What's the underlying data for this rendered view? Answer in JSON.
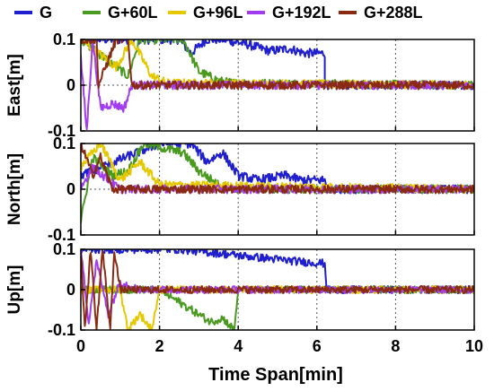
{
  "chart_data": {
    "type": "line",
    "xlabel": "Time Span[min]",
    "xlim": [
      0,
      10
    ],
    "xticks": [
      "0",
      "2",
      "4",
      "6",
      "8",
      "10"
    ],
    "legend": {
      "placement": "top",
      "entries": [
        {
          "name": "G",
          "color": "#1f1fcf"
        },
        {
          "name": "G+60L",
          "color": "#4a9a1f"
        },
        {
          "name": "G+96L",
          "color": "#e6c800"
        },
        {
          "name": "G+192L",
          "color": "#a23cf0"
        },
        {
          "name": "G+288L",
          "color": "#8b2a12"
        }
      ]
    },
    "panels": [
      {
        "ylabel": "East[m]",
        "ylim": [
          -0.1,
          0.1
        ],
        "yticks": [
          "0.1",
          "0",
          "-0.1"
        ],
        "grid": true,
        "series": [
          {
            "name": "G",
            "color": "#1f1fcf",
            "points": [
              [
                0.0,
                0.1
              ],
              [
                2.5,
                0.1
              ],
              [
                2.8,
                0.07
              ],
              [
                3.2,
                0.1
              ],
              [
                3.6,
                0.1
              ],
              [
                4.2,
                0.09
              ],
              [
                4.8,
                0.075
              ],
              [
                5.3,
                0.08
              ],
              [
                5.7,
                0.07
              ],
              [
                6.2,
                0.07
              ],
              [
                6.2,
                0.0
              ],
              [
                10.0,
                0.0
              ]
            ]
          },
          {
            "name": "G+60L",
            "color": "#4a9a1f",
            "points": [
              [
                0.0,
                0.1
              ],
              [
                1.2,
                0.02
              ],
              [
                1.5,
                0.1
              ],
              [
                2.6,
                0.1
              ],
              [
                3.0,
                0.03
              ],
              [
                3.5,
                0.01
              ],
              [
                3.9,
                0.005
              ],
              [
                10.0,
                0.0
              ]
            ]
          },
          {
            "name": "G+96L",
            "color": "#e6c800",
            "points": [
              [
                0.0,
                0.1
              ],
              [
                0.9,
                0.04
              ],
              [
                1.3,
                0.1
              ],
              [
                1.8,
                0.02
              ],
              [
                2.2,
                0.005
              ],
              [
                10.0,
                0.0
              ]
            ]
          },
          {
            "name": "G+192L",
            "color": "#a23cf0",
            "points": [
              [
                0.0,
                0.06
              ],
              [
                0.15,
                -0.1
              ],
              [
                0.3,
                0.1
              ],
              [
                0.5,
                -0.05
              ],
              [
                0.8,
                -0.04
              ],
              [
                1.1,
                -0.05
              ],
              [
                1.3,
                0.0
              ],
              [
                10.0,
                0.0
              ]
            ]
          },
          {
            "name": "G+288L",
            "color": "#8b2a12",
            "points": [
              [
                0.0,
                0.1
              ],
              [
                0.4,
                0.1
              ],
              [
                0.45,
                0.0
              ],
              [
                0.9,
                0.1
              ],
              [
                1.2,
                0.1
              ],
              [
                1.3,
                0.0
              ],
              [
                10.0,
                0.0
              ]
            ]
          }
        ]
      },
      {
        "ylabel": "North[m]",
        "ylim": [
          -0.1,
          0.1
        ],
        "yticks": [
          "0.1",
          "0",
          "-0.1"
        ],
        "grid": true,
        "series": [
          {
            "name": "G",
            "color": "#1f1fcf",
            "points": [
              [
                0.0,
                0.03
              ],
              [
                2.0,
                0.1
              ],
              [
                2.8,
                0.1
              ],
              [
                3.2,
                0.06
              ],
              [
                3.6,
                0.08
              ],
              [
                4.0,
                0.03
              ],
              [
                4.5,
                0.02
              ],
              [
                5.2,
                0.03
              ],
              [
                5.6,
                0.02
              ],
              [
                6.2,
                0.02
              ],
              [
                6.25,
                0.0
              ],
              [
                10.0,
                0.0
              ]
            ]
          },
          {
            "name": "G+60L",
            "color": "#4a9a1f",
            "points": [
              [
                0.0,
                -0.07
              ],
              [
                0.3,
                0.07
              ],
              [
                0.8,
                0.03
              ],
              [
                1.2,
                0.04
              ],
              [
                1.6,
                0.1
              ],
              [
                2.6,
                0.08
              ],
              [
                3.0,
                0.04
              ],
              [
                3.5,
                0.01
              ],
              [
                4.0,
                0.0
              ],
              [
                10.0,
                0.0
              ]
            ]
          },
          {
            "name": "G+96L",
            "color": "#e6c800",
            "points": [
              [
                0.0,
                0.05
              ],
              [
                0.5,
                0.1
              ],
              [
                1.0,
                0.02
              ],
              [
                1.5,
                0.06
              ],
              [
                2.0,
                0.01
              ],
              [
                10.0,
                0.0
              ]
            ]
          },
          {
            "name": "G+192L",
            "color": "#a23cf0",
            "points": [
              [
                0.0,
                0.0
              ],
              [
                0.3,
                0.05
              ],
              [
                0.7,
                0.02
              ],
              [
                1.0,
                0.0
              ],
              [
                10.0,
                0.0
              ]
            ]
          },
          {
            "name": "G+288L",
            "color": "#8b2a12",
            "points": [
              [
                0.0,
                0.1
              ],
              [
                0.3,
                0.03
              ],
              [
                0.5,
                0.07
              ],
              [
                0.8,
                0.0
              ],
              [
                10.0,
                0.0
              ]
            ]
          }
        ]
      },
      {
        "ylabel": "Up[m]",
        "ylim": [
          -0.1,
          0.1
        ],
        "yticks": [
          "0.1",
          "0",
          "-0.1"
        ],
        "grid": true,
        "series": [
          {
            "name": "G",
            "color": "#1f1fcf",
            "points": [
              [
                0.0,
                0.1
              ],
              [
                2.5,
                0.1
              ],
              [
                3.5,
                0.09
              ],
              [
                4.5,
                0.08
              ],
              [
                5.5,
                0.07
              ],
              [
                6.2,
                0.065
              ],
              [
                6.25,
                0.0
              ],
              [
                10.0,
                0.0
              ]
            ]
          },
          {
            "name": "G+60L",
            "color": "#4a9a1f",
            "points": [
              [
                0.0,
                0.0
              ],
              [
                2.0,
                0.0
              ],
              [
                3.3,
                -0.08
              ],
              [
                3.6,
                -0.07
              ],
              [
                3.9,
                -0.1
              ],
              [
                4.0,
                0.0
              ],
              [
                10.0,
                0.0
              ]
            ]
          },
          {
            "name": "G+96L",
            "color": "#e6c800",
            "points": [
              [
                0.0,
                0.0
              ],
              [
                1.0,
                0.0
              ],
              [
                1.2,
                -0.1
              ],
              [
                1.5,
                -0.06
              ],
              [
                1.8,
                -0.1
              ],
              [
                2.0,
                0.0
              ],
              [
                10.0,
                0.0
              ]
            ]
          },
          {
            "name": "G+192L",
            "color": "#a23cf0",
            "points": [
              [
                0.0,
                0.1
              ],
              [
                0.2,
                -0.08
              ],
              [
                0.4,
                0.07
              ],
              [
                0.7,
                -0.06
              ],
              [
                1.0,
                0.02
              ],
              [
                1.5,
                0.0
              ],
              [
                10.0,
                0.0
              ]
            ]
          },
          {
            "name": "G+288L",
            "color": "#8b2a12",
            "points": [
              [
                0.0,
                0.1
              ],
              [
                0.1,
                -0.1
              ],
              [
                0.25,
                0.1
              ],
              [
                0.4,
                -0.1
              ],
              [
                0.55,
                0.1
              ],
              [
                0.75,
                -0.1
              ],
              [
                0.85,
                0.1
              ],
              [
                1.0,
                0.0
              ],
              [
                10.0,
                0.0
              ]
            ]
          }
        ]
      }
    ]
  }
}
